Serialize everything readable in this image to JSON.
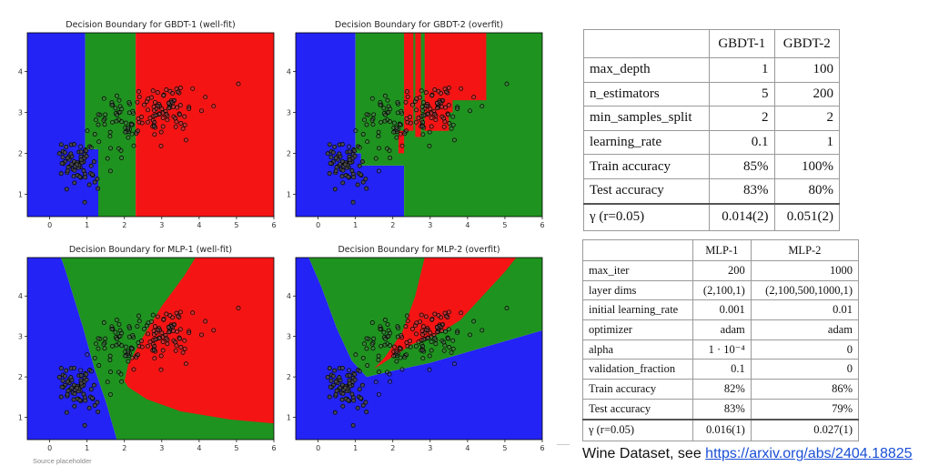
{
  "chart_data": [
    {
      "type": "scatter",
      "title": "Decision Boundary for GBDT-1 (well-fit)",
      "xlim": [
        -0.6,
        6.0
      ],
      "ylim": [
        0.45,
        4.95
      ],
      "xticks": [
        0,
        1,
        2,
        3,
        4,
        5,
        6
      ],
      "yticks": [
        1,
        2,
        3,
        4
      ],
      "regions": [
        {
          "class": "blue",
          "polygon": [
            [
              -0.6,
              0.45
            ],
            [
              1.3,
              0.45
            ],
            [
              1.3,
              2.1
            ],
            [
              0.95,
              2.1
            ],
            [
              0.95,
              4.95
            ],
            [
              -0.6,
              4.95
            ]
          ]
        },
        {
          "class": "green",
          "polygon": [
            [
              1.3,
              0.45
            ],
            [
              2.3,
              0.45
            ],
            [
              2.3,
              4.95
            ],
            [
              0.95,
              4.95
            ],
            [
              0.95,
              2.1
            ],
            [
              1.3,
              2.1
            ]
          ]
        },
        {
          "class": "red",
          "polygon": [
            [
              2.3,
              0.45
            ],
            [
              6.0,
              0.45
            ],
            [
              6.0,
              4.95
            ],
            [
              2.3,
              4.95
            ]
          ]
        }
      ]
    },
    {
      "type": "scatter",
      "title": "Decision Boundary for GBDT-2 (overfit)",
      "xlim": [
        -0.6,
        6.0
      ],
      "ylim": [
        0.45,
        4.95
      ],
      "xticks": [
        0,
        1,
        2,
        3,
        4,
        5,
        6
      ],
      "yticks": [
        1,
        2,
        3,
        4
      ],
      "regions": [
        {
          "class": "blue",
          "polygon": [
            [
              -0.6,
              0.45
            ],
            [
              2.3,
              0.45
            ],
            [
              2.3,
              1.7
            ],
            [
              1.15,
              1.7
            ],
            [
              1.15,
              2.0
            ],
            [
              1.0,
              2.0
            ],
            [
              1.0,
              4.95
            ],
            [
              -0.6,
              4.95
            ]
          ]
        },
        {
          "class": "green",
          "polygon": [
            [
              2.3,
              0.45
            ],
            [
              6.0,
              0.45
            ],
            [
              6.0,
              4.95
            ],
            [
              1.0,
              4.95
            ],
            [
              1.0,
              2.0
            ],
            [
              1.15,
              2.0
            ],
            [
              1.15,
              1.7
            ],
            [
              2.3,
              1.7
            ]
          ]
        },
        {
          "class": "red",
          "polygon": [
            [
              2.3,
              2.55
            ],
            [
              2.55,
              2.55
            ],
            [
              2.55,
              4.95
            ],
            [
              2.3,
              4.95
            ]
          ]
        },
        {
          "class": "red",
          "polygon": [
            [
              2.15,
              2.0
            ],
            [
              2.3,
              2.0
            ],
            [
              2.3,
              2.55
            ],
            [
              2.15,
              2.55
            ]
          ]
        },
        {
          "class": "red",
          "polygon": [
            [
              2.6,
              2.4
            ],
            [
              2.75,
              2.4
            ],
            [
              2.75,
              4.95
            ],
            [
              2.6,
              4.95
            ]
          ]
        },
        {
          "class": "red",
          "polygon": [
            [
              2.85,
              2.55
            ],
            [
              3.5,
              2.55
            ],
            [
              3.5,
              3.3
            ],
            [
              4.5,
              3.3
            ],
            [
              4.5,
              4.95
            ],
            [
              2.85,
              4.95
            ]
          ]
        },
        {
          "class": "red",
          "polygon": [
            [
              3.3,
              3.0
            ],
            [
              3.6,
              3.0
            ],
            [
              3.6,
              3.4
            ],
            [
              3.3,
              3.4
            ]
          ]
        }
      ]
    },
    {
      "type": "scatter",
      "title": "Decision Boundary for MLP-1 (well-fit)",
      "xlim": [
        -0.6,
        6.0
      ],
      "ylim": [
        0.45,
        4.95
      ],
      "xticks": [
        0,
        1,
        2,
        3,
        4,
        5,
        6
      ],
      "yticks": [
        1,
        2,
        3,
        4
      ],
      "regions": [
        {
          "class": "blue",
          "polygon": [
            [
              -0.6,
              0.45
            ],
            [
              1.8,
              0.45
            ],
            [
              1.5,
              1.4
            ],
            [
              1.2,
              2.2
            ],
            [
              0.9,
              3.2
            ],
            [
              0.4,
              4.7
            ],
            [
              0.3,
              4.95
            ],
            [
              -0.6,
              4.95
            ]
          ]
        },
        {
          "class": "green",
          "polygon": [
            [
              1.8,
              0.45
            ],
            [
              6.0,
              0.45
            ],
            [
              6.0,
              4.95
            ],
            [
              0.3,
              4.95
            ],
            [
              0.4,
              4.7
            ],
            [
              0.9,
              3.2
            ],
            [
              1.2,
              2.2
            ],
            [
              1.5,
              1.4
            ]
          ]
        },
        {
          "class": "red",
          "polygon": [
            [
              2.0,
              1.9
            ],
            [
              2.1,
              2.3
            ],
            [
              2.5,
              3.0
            ],
            [
              3.0,
              3.75
            ],
            [
              3.6,
              4.5
            ],
            [
              3.9,
              4.95
            ],
            [
              6.0,
              4.95
            ],
            [
              6.0,
              0.85
            ],
            [
              4.8,
              0.95
            ],
            [
              3.5,
              1.15
            ],
            [
              2.6,
              1.45
            ],
            [
              2.1,
              1.75
            ]
          ]
        }
      ]
    },
    {
      "type": "scatter",
      "title": "Decision Boundary for MLP-2 (overfit)",
      "xlim": [
        -0.6,
        6.0
      ],
      "ylim": [
        0.45,
        4.95
      ],
      "xticks": [
        0,
        1,
        2,
        3,
        4,
        5,
        6
      ],
      "yticks": [
        1,
        2,
        3,
        4
      ],
      "regions": [
        {
          "class": "blue",
          "polygon": [
            [
              -0.6,
              0.45
            ],
            [
              6.0,
              0.45
            ],
            [
              6.0,
              3.15
            ],
            [
              4.5,
              2.75
            ],
            [
              3.0,
              2.35
            ],
            [
              2.0,
              2.15
            ],
            [
              1.3,
              2.0
            ],
            [
              0.9,
              2.4
            ],
            [
              0.5,
              3.2
            ],
            [
              0.1,
              4.2
            ],
            [
              -0.25,
              4.95
            ],
            [
              -0.6,
              4.95
            ]
          ]
        },
        {
          "class": "green",
          "polygon": [
            [
              -0.25,
              4.95
            ],
            [
              0.1,
              4.2
            ],
            [
              0.5,
              3.2
            ],
            [
              0.9,
              2.4
            ],
            [
              1.3,
              2.0
            ],
            [
              2.0,
              2.15
            ],
            [
              3.0,
              2.35
            ],
            [
              4.5,
              2.75
            ],
            [
              6.0,
              3.15
            ],
            [
              6.0,
              4.95
            ]
          ]
        },
        {
          "class": "red",
          "polygon": [
            [
              1.5,
              2.2
            ],
            [
              2.0,
              2.5
            ],
            [
              2.5,
              2.8
            ],
            [
              3.2,
              3.05
            ],
            [
              3.8,
              3.4
            ],
            [
              4.4,
              4.0
            ],
            [
              5.0,
              4.6
            ],
            [
              5.3,
              4.95
            ],
            [
              2.85,
              4.95
            ],
            [
              2.6,
              4.0
            ],
            [
              2.25,
              3.1
            ],
            [
              1.8,
              2.5
            ]
          ]
        }
      ]
    }
  ],
  "gbdt_table": {
    "headers": [
      "",
      "GBDT-1",
      "GBDT-2"
    ],
    "rows": [
      [
        "max_depth",
        "1",
        "100"
      ],
      [
        "n_estimators",
        "5",
        "200"
      ],
      [
        "min_samples_split",
        "2",
        "2"
      ],
      [
        "learning_rate",
        "0.1",
        "1"
      ],
      [
        "Train accuracy",
        "85%",
        "100%"
      ],
      [
        "Test accuracy",
        "83%",
        "80%"
      ],
      [
        "γ (r=0.05)",
        "0.014(2)",
        "0.051(2)"
      ]
    ]
  },
  "mlp_table": {
    "headers": [
      "",
      "MLP-1",
      "MLP-2"
    ],
    "rows": [
      [
        "max_iter",
        "200",
        "1000"
      ],
      [
        "layer dims",
        "(2,100,1)",
        "(2,100,500,1000,1)"
      ],
      [
        "initial learning_rate",
        "0.001",
        "0.01"
      ],
      [
        "optimizer",
        "adam",
        "adam"
      ],
      [
        "alpha",
        "1 · 10⁻⁴",
        "0"
      ],
      [
        "validation_fraction",
        "0.1",
        "0"
      ],
      [
        "Train accuracy",
        "82%",
        "86%"
      ],
      [
        "Test accuracy",
        "83%",
        "79%"
      ],
      [
        "γ (r=0.05)",
        "0.016(1)",
        "0.027(1)"
      ]
    ]
  },
  "caption": {
    "text": "Wine Dataset, see ",
    "link": "https://arxiv.org/abs/2404.18825"
  },
  "source": "Source placeholder",
  "colors": {
    "blue": "#2323f5",
    "green": "#1f931f",
    "red": "#f51414",
    "point_fill": "#4a4a4a",
    "point_fill_light": "#6e6e6e",
    "point_edge": "#000000"
  }
}
